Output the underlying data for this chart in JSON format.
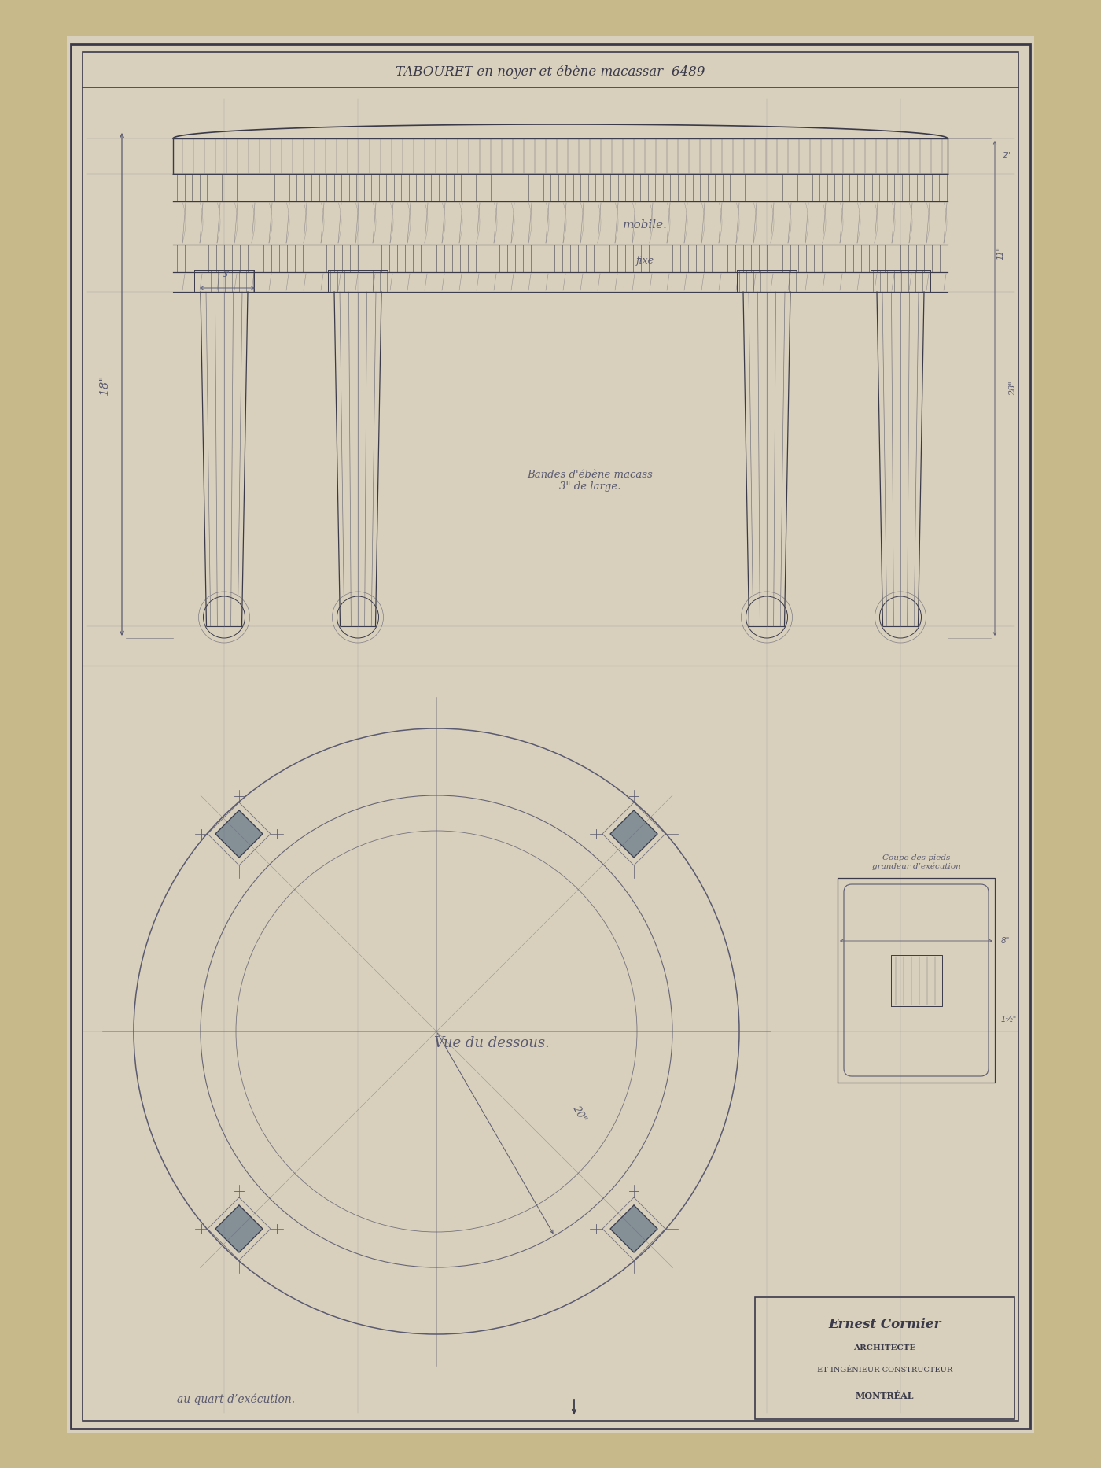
{
  "bg_color_outer": "#c8b98a",
  "bg_color_paper": "#d8d0bc",
  "line_color": "#3a3a4a",
  "pencil_color": "#5a5a70",
  "blue_pencil": "#5a6080",
  "title_text": "TABOURET en noyer et ébène macassar- 6489",
  "mobile_text": "mobile.",
  "fixe_text": "fixe",
  "bandes_text": "Bandes d'ébène macass\n3\" de large.",
  "vue_text": "Vue du dessous.",
  "quart_text": "au quart d’exécution.",
  "coupe_text": "Coupe des pieds\ngrandeur d’exécution",
  "dim_18": "18\"",
  "dim_20": "20\"",
  "ernest_line1": "Ernest Cormier",
  "ernest_line2": "Architecte",
  "ernest_line3": "et Ingénieur-Constructeur",
  "ernest_line4": "Montréal"
}
